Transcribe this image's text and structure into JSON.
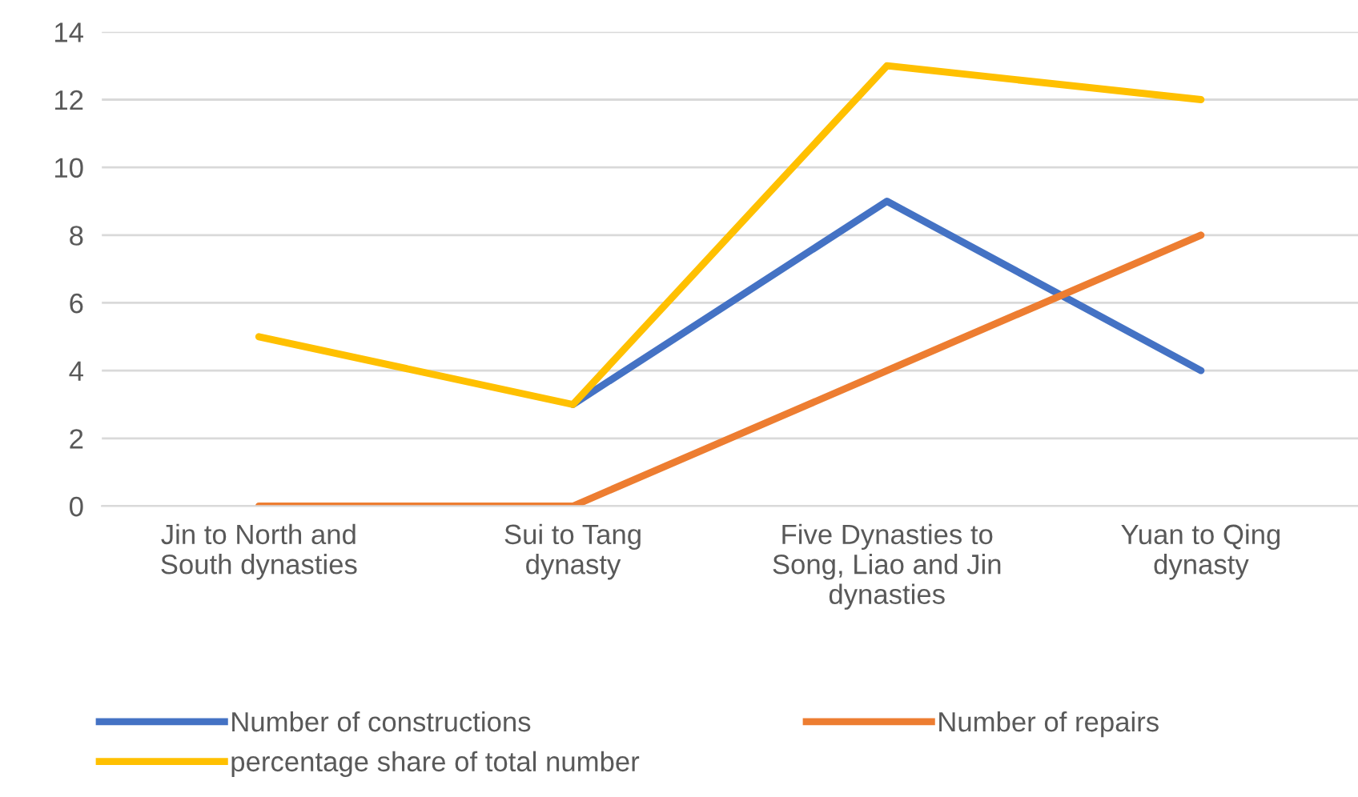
{
  "chart_data": {
    "type": "line",
    "categories": [
      "Jin to North and South dynasties",
      "Sui to Tang dynasty",
      "Five Dynasties to Song, Liao and Jin dynasties",
      "Yuan to Qing dynasty"
    ],
    "series": [
      {
        "name": "Number of constructions",
        "color": "#4472c4",
        "values": [
          null,
          3,
          9,
          4
        ]
      },
      {
        "name": "Number of repairs",
        "color": "#ed7d31",
        "values": [
          0,
          0,
          4,
          8
        ]
      },
      {
        "name": "percentage share of total number",
        "color": "#ffc000",
        "values": [
          5,
          3,
          13,
          12
        ]
      }
    ],
    "ylim": [
      0,
      14
    ],
    "yticks": [
      0,
      2,
      4,
      6,
      8,
      10,
      12,
      14
    ],
    "grid": "y",
    "legend": "bottom",
    "marker": "none",
    "line_style": "solid"
  }
}
